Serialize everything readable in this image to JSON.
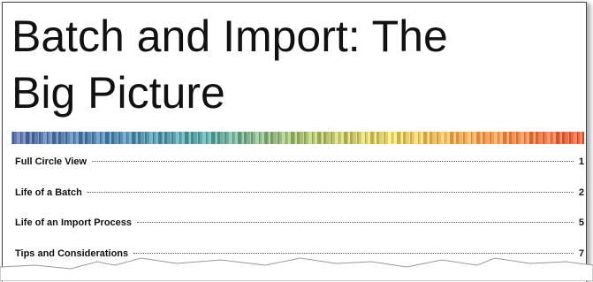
{
  "header": {
    "title_lines": [
      "Batch and Import: The",
      "Big Picture"
    ]
  },
  "toc": {
    "entries": [
      {
        "title": "Full Circle View",
        "page": 1
      },
      {
        "title": "Life of a Batch",
        "page": 2
      },
      {
        "title": "Life of an Import Process",
        "page": 5
      },
      {
        "title": "Tips and Considerations",
        "page": 7
      }
    ]
  }
}
